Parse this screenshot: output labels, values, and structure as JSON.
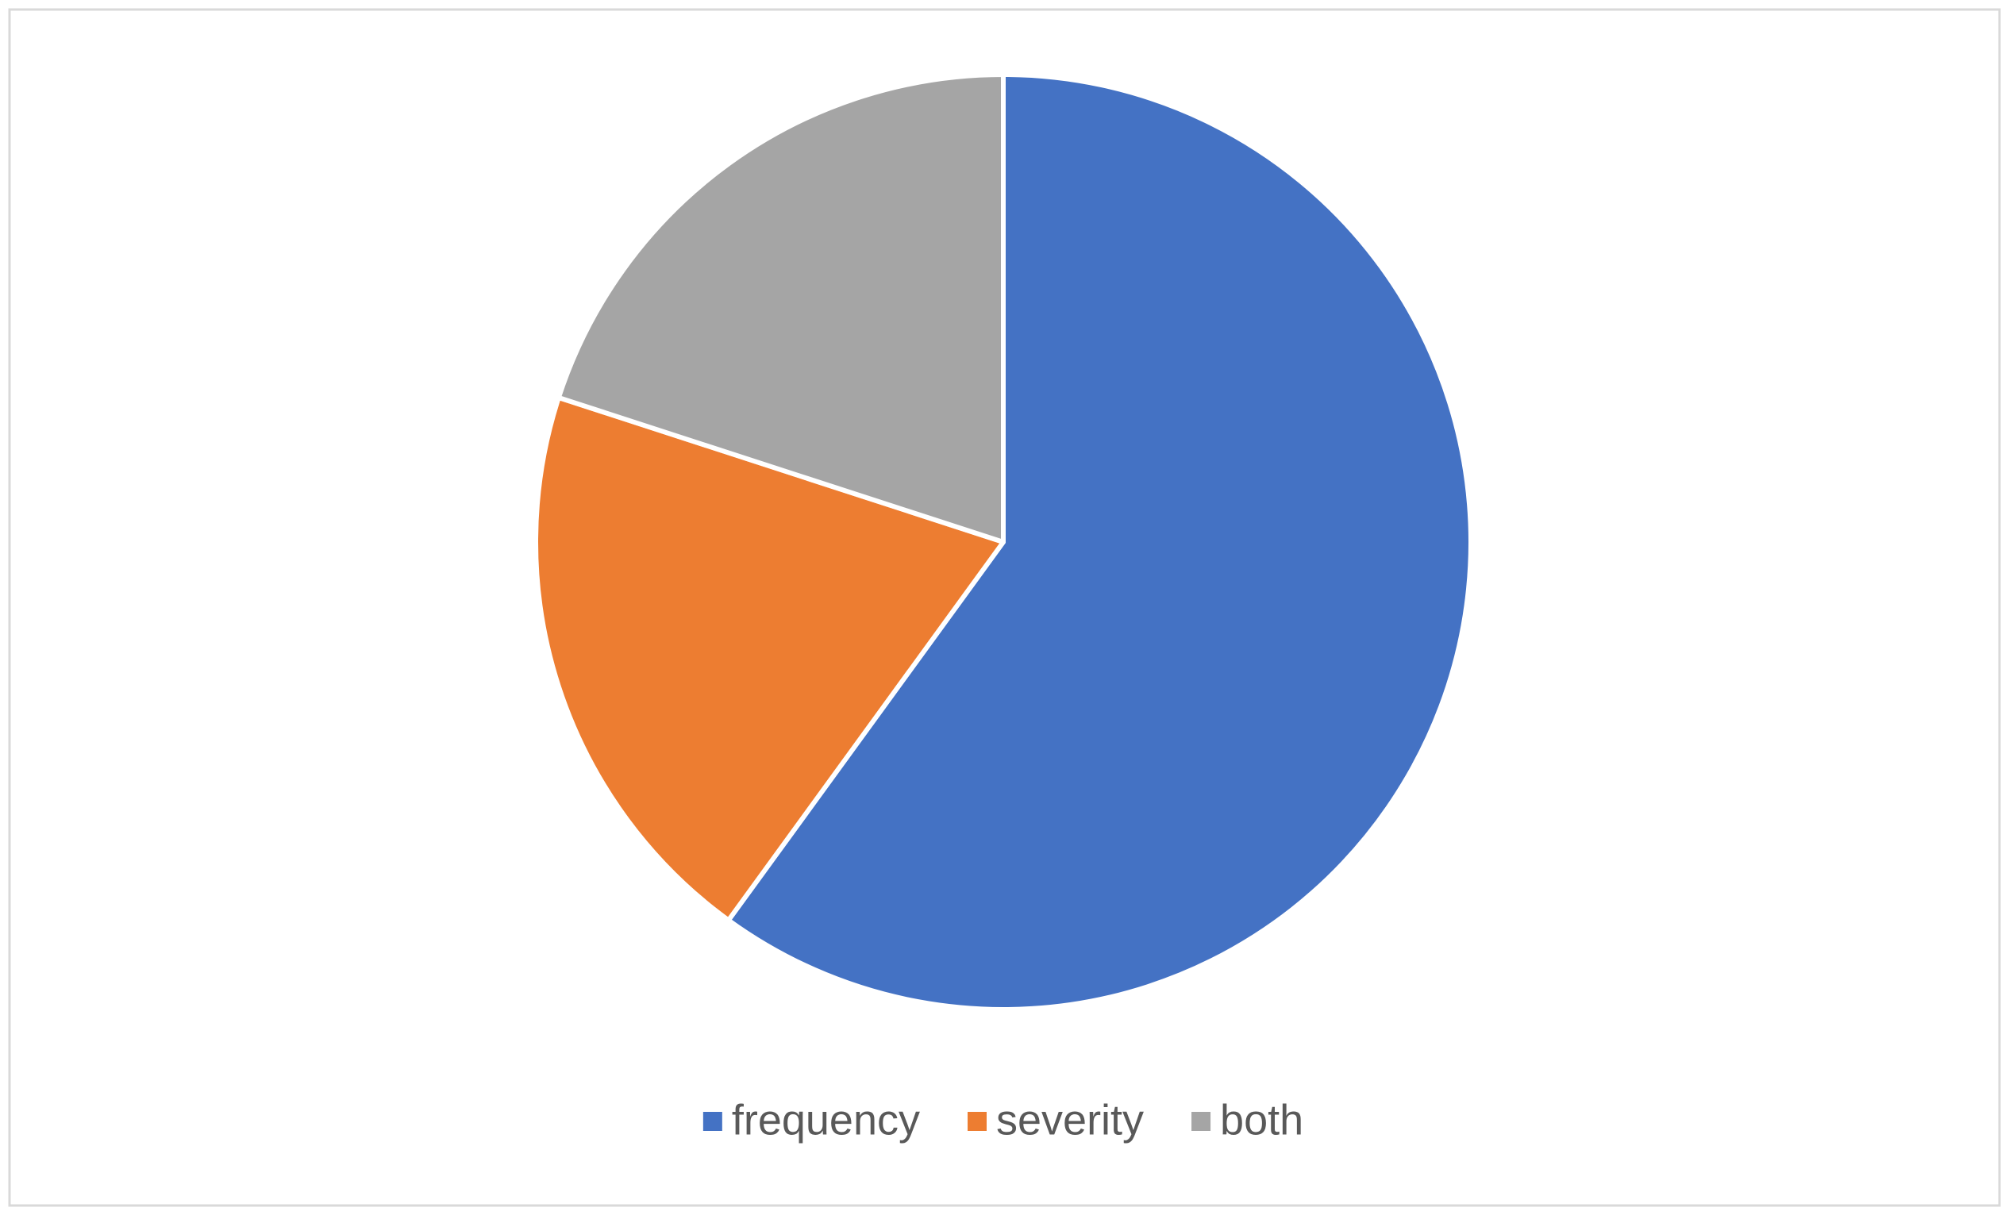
{
  "chart_data": {
    "type": "pie",
    "categories": [
      "frequency",
      "severity",
      "both"
    ],
    "values": [
      60,
      20,
      20
    ],
    "colors": [
      "#4472c4",
      "#ed7d31",
      "#a5a5a5"
    ],
    "start_angle": 0,
    "direction": "clockwise",
    "legend": "bottom"
  }
}
